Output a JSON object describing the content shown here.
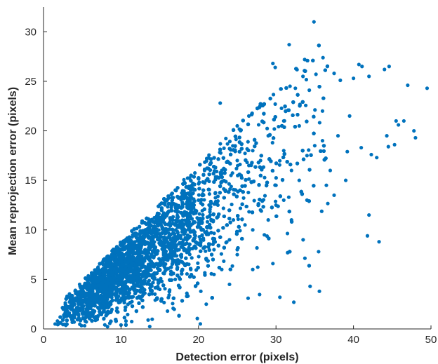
{
  "chart_data": {
    "type": "scatter",
    "title": "",
    "xlabel": "Detection error (pixels)",
    "ylabel": "Mean reprojection error (pixels)",
    "xlim": [
      0,
      50
    ],
    "ylim": [
      0,
      32.5
    ],
    "xticks": [
      "0",
      "10",
      "20",
      "30",
      "40",
      "50"
    ],
    "yticks": [
      "0",
      "5",
      "10",
      "15",
      "20",
      "25",
      "30"
    ],
    "grid": false,
    "marker_color": "#0072BD",
    "series": [
      {
        "points": [
          [
            34.9,
            31.0
          ],
          [
            31.7,
            28.7
          ],
          [
            33.7,
            27.2
          ],
          [
            29.6,
            26.8
          ],
          [
            29.9,
            26.4
          ],
          [
            40.7,
            26.7
          ],
          [
            41.1,
            26.5
          ],
          [
            44.6,
            26.5
          ],
          [
            44.0,
            26.2
          ],
          [
            37.5,
            25.8
          ],
          [
            42.0,
            25.5
          ],
          [
            49.5,
            24.3
          ],
          [
            47.0,
            24.6
          ],
          [
            40.0,
            25.3
          ],
          [
            38.3,
            25.1
          ],
          [
            32.5,
            24.3
          ],
          [
            34.3,
            24.1
          ],
          [
            22.8,
            22.8
          ],
          [
            29.9,
            22.7
          ],
          [
            26.5,
            21.5
          ],
          [
            25.0,
            20.5
          ],
          [
            44.3,
            19.5
          ],
          [
            46.5,
            21.0
          ],
          [
            47.8,
            20.0
          ],
          [
            45.5,
            21.0
          ],
          [
            45.8,
            20.6
          ],
          [
            48.0,
            19.3
          ],
          [
            44.5,
            18.4
          ],
          [
            45.3,
            18.6
          ],
          [
            42.3,
            17.6
          ],
          [
            43.0,
            17.3
          ],
          [
            39.2,
            17.9
          ],
          [
            41.0,
            18.3
          ],
          [
            42.0,
            11.5
          ],
          [
            41.8,
            9.4
          ],
          [
            43.3,
            8.8
          ],
          [
            35.5,
            7.8
          ],
          [
            29.6,
            6.6
          ],
          [
            31.5,
            7.7
          ],
          [
            34.4,
            4.3
          ],
          [
            35.6,
            3.8
          ],
          [
            32.3,
            2.7
          ],
          [
            30.5,
            3.2
          ],
          [
            26.4,
            3.1
          ],
          [
            20.3,
            3.8
          ],
          [
            18.5,
            3.6
          ],
          [
            10.0,
            0.4
          ],
          [
            13.5,
            0.9
          ],
          [
            16.0,
            1.8
          ],
          [
            36.0,
            22.0
          ],
          [
            38.0,
            19.5
          ],
          [
            39.5,
            21.5
          ],
          [
            35.0,
            18.5
          ],
          [
            37.0,
            16.0
          ],
          [
            39.0,
            15.0
          ],
          [
            36.5,
            14.5
          ],
          [
            33.0,
            20.5
          ],
          [
            31.0,
            18.0
          ],
          [
            28.0,
            17.0
          ],
          [
            34.0,
            13.0
          ],
          [
            37.5,
            13.5
          ],
          [
            32.0,
            11.0
          ],
          [
            30.0,
            12.5
          ],
          [
            28.5,
            9.5
          ],
          [
            33.5,
            9.0
          ],
          [
            27.0,
            6.0
          ],
          [
            25.0,
            7.5
          ],
          [
            24.0,
            4.5
          ],
          [
            22.0,
            5.5
          ],
          [
            21.0,
            2.5
          ],
          [
            23.5,
            14.0
          ],
          [
            22.5,
            12.5
          ],
          [
            25.5,
            15.5
          ],
          [
            26.5,
            16.5
          ],
          [
            24.5,
            11.0
          ],
          [
            20.5,
            10.0
          ],
          [
            21.5,
            11.5
          ],
          [
            19.5,
            9.5
          ],
          [
            18.5,
            9.0
          ],
          [
            17.5,
            8.0
          ],
          [
            16.5,
            7.5
          ],
          [
            15.5,
            7.0
          ],
          [
            14.5,
            6.5
          ],
          [
            13.5,
            6.0
          ],
          [
            12.5,
            5.5
          ],
          [
            11.5,
            5.0
          ],
          [
            10.5,
            4.5
          ],
          [
            9.5,
            4.0
          ],
          [
            8.5,
            3.5
          ],
          [
            7.5,
            3.0
          ],
          [
            6.5,
            2.5
          ],
          [
            5.5,
            2.0
          ],
          [
            4.5,
            1.5
          ],
          [
            3.5,
            1.2
          ],
          [
            2.5,
            0.9
          ],
          [
            2.0,
            0.6
          ],
          [
            1.5,
            0.5
          ],
          [
            1.8,
            0.8
          ],
          [
            3.0,
            2.0
          ],
          [
            5.0,
            3.5
          ],
          [
            7.0,
            5.0
          ],
          [
            9.0,
            6.5
          ],
          [
            11.0,
            8.0
          ],
          [
            13.0,
            9.5
          ],
          [
            15.0,
            11.0
          ],
          [
            17.0,
            12.5
          ],
          [
            19.0,
            14.0
          ],
          [
            21.0,
            15.0
          ],
          [
            23.0,
            16.0
          ],
          [
            25.0,
            17.0
          ],
          [
            27.0,
            18.0
          ],
          [
            29.0,
            19.5
          ],
          [
            31.0,
            21.0
          ],
          [
            20.0,
            13.0
          ],
          [
            18.0,
            11.5
          ],
          [
            16.0,
            10.0
          ],
          [
            14.0,
            8.5
          ],
          [
            12.0,
            7.0
          ],
          [
            10.0,
            5.5
          ],
          [
            8.0,
            4.5
          ],
          [
            6.0,
            3.5
          ],
          [
            4.0,
            2.5
          ],
          [
            22.0,
            8.0
          ],
          [
            24.0,
            9.0
          ],
          [
            26.0,
            10.5
          ],
          [
            28.0,
            12.0
          ],
          [
            30.0,
            14.5
          ],
          [
            32.0,
            16.0
          ],
          [
            34.0,
            17.5
          ],
          [
            36.0,
            19.0
          ],
          [
            15.0,
            4.0
          ],
          [
            17.0,
            5.0
          ],
          [
            19.0,
            6.0
          ],
          [
            21.0,
            7.0
          ],
          [
            23.0,
            6.0
          ],
          [
            25.0,
            8.0
          ],
          [
            27.0,
            10.0
          ],
          [
            29.0,
            11.0
          ],
          [
            31.0,
            13.0
          ],
          [
            33.0,
            15.0
          ]
        ]
      }
    ]
  }
}
